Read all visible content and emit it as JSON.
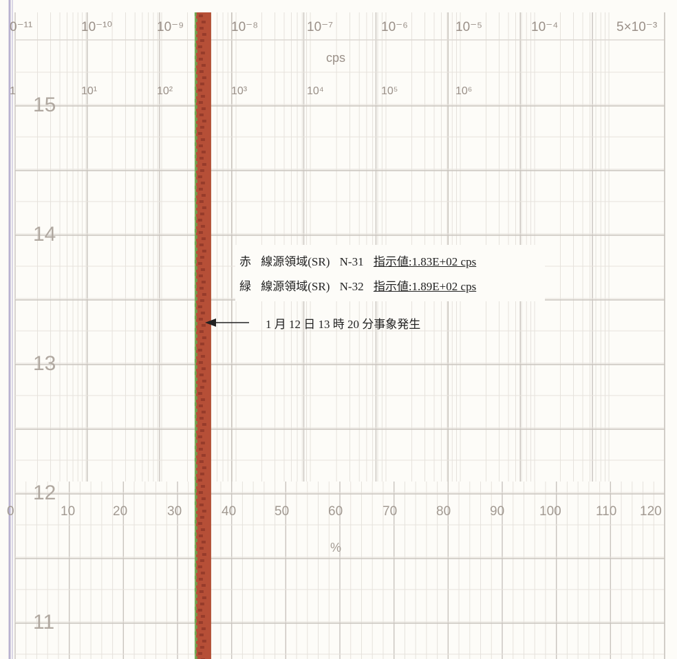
{
  "chart_data": {
    "type": "line",
    "title": "",
    "cps_axis": {
      "unit_label": "cps",
      "ticks_row1": [
        "0⁻¹¹",
        "10⁻¹⁰",
        "10⁻⁹",
        "10⁻⁸",
        "10⁻⁷",
        "10⁻⁶",
        "10⁻⁵",
        "10⁻⁴",
        "5×10⁻³"
      ],
      "ticks_row2": [
        "1",
        "10¹",
        "10²",
        "10³",
        "10⁴",
        "10⁵",
        "10⁶"
      ]
    },
    "percent_axis": {
      "unit_label": "%",
      "ticks": [
        "0",
        "10",
        "20",
        "30",
        "40",
        "50",
        "60",
        "70",
        "80",
        "90",
        "100",
        "110",
        "120"
      ],
      "range": [
        0,
        120
      ]
    },
    "time_labels": [
      "15",
      "14",
      "13",
      "12",
      "11"
    ],
    "series": [
      {
        "name": "赤",
        "color": "#b84a35",
        "value_cps": 183,
        "approx_percent": 31
      },
      {
        "name": "緑",
        "color": "#6aa84f",
        "value_cps": 189,
        "approx_percent": 31
      }
    ],
    "grid": true
  },
  "legend": {
    "rows": [
      {
        "color_name": "赤",
        "region": "線源領域(SR)",
        "channel": "N-31",
        "value": "指示値:1.83E+02 cps"
      },
      {
        "color_name": "緑",
        "region": "線源領域(SR)",
        "channel": "N-32",
        "value": "指示値:1.89E+02 cps"
      }
    ]
  },
  "annotation": {
    "event_text": "1 月 12 日 13 時 20 分事象発生"
  },
  "colors": {
    "paper": "#fdfcf8",
    "grid": "#c9c4be",
    "grid_minor": "#e6e2dc",
    "red_trace": "#b84a35",
    "green_trace": "#6aa84f"
  }
}
